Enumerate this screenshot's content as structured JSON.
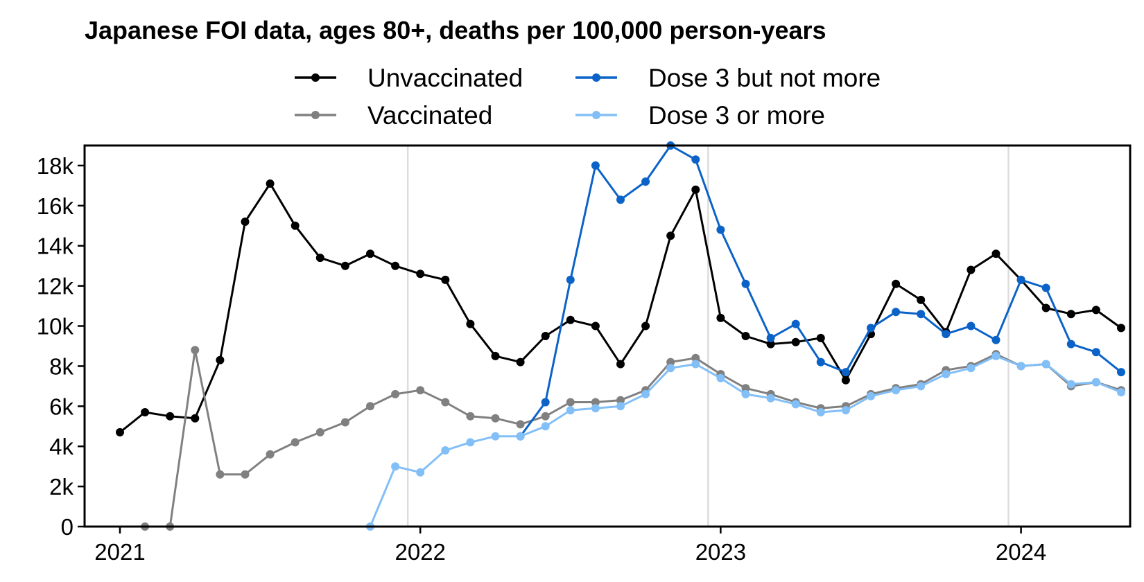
{
  "chart_data": {
    "type": "line",
    "title": "Japanese FOI data, ages 80+, deaths per 100,000 person-years",
    "xlabel": "",
    "ylabel": "",
    "x_tick_labels": [
      "2021",
      "2022",
      "2023",
      "2024"
    ],
    "y_tick_labels": [
      "0",
      "2k",
      "4k",
      "6k",
      "8k",
      "10k",
      "12k",
      "14k",
      "16k",
      "18k"
    ],
    "ylim": [
      0,
      19000
    ],
    "xlim": [
      "2021-01",
      "2024-05"
    ],
    "grid": "vertical at year boundaries",
    "legend_position": "top, two columns",
    "series": [
      {
        "name": "Unvaccinated",
        "color": "#000000",
        "start": "2021-01",
        "values": [
          4700,
          5700,
          5500,
          5400,
          8300,
          15200,
          17100,
          15000,
          13400,
          13000,
          13600,
          13000,
          12600,
          12300,
          10100,
          8500,
          8200,
          9500,
          10300,
          10000,
          8100,
          10000,
          14500,
          16800,
          10400,
          9500,
          9100,
          9200,
          9400,
          7300,
          9600,
          12100,
          11300,
          9700,
          12800,
          13600,
          12300,
          10900,
          10600,
          10800,
          9900
        ]
      },
      {
        "name": "Vaccinated",
        "color": "#808080",
        "start": "2021-02",
        "values": [
          0,
          0,
          8800,
          2600,
          2600,
          3600,
          4200,
          4700,
          5200,
          6000,
          6600,
          6800,
          6200,
          5500,
          5400,
          5100,
          5500,
          6200,
          6200,
          6300,
          6800,
          8200,
          8400,
          7600,
          6900,
          6600,
          6200,
          5900,
          6000,
          6600,
          6900,
          7100,
          7800,
          8000,
          8600,
          8000,
          8100,
          7000,
          7200,
          6800
        ]
      },
      {
        "name": "Dose 3 but not more",
        "color": "#0b63c8",
        "start": "2022-05",
        "values": [
          4500,
          6200,
          12300,
          18000,
          16300,
          17200,
          19000,
          18300,
          14800,
          12100,
          9400,
          10100,
          8200,
          7700,
          9900,
          10700,
          10600,
          9600,
          10000,
          9300,
          12300,
          11900,
          9100,
          8700,
          7700
        ]
      },
      {
        "name": "Dose 3 or more",
        "color": "#82bff7",
        "start": "2021-11",
        "values": [
          0,
          3000,
          2700,
          3800,
          4200,
          4500,
          4500,
          5000,
          5800,
          5900,
          6000,
          6600,
          7900,
          8100,
          7400,
          6600,
          6400,
          6100,
          5700,
          5800,
          6500,
          6800,
          7000,
          7600,
          7900,
          8500,
          8000,
          8100,
          7100,
          7200,
          6700
        ]
      }
    ]
  }
}
